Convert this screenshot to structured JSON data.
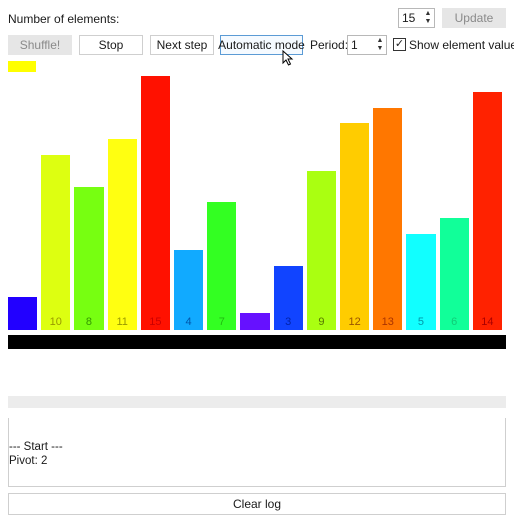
{
  "header": {
    "count_label": "Number of elements:",
    "count_value": "15",
    "update_label": "Update"
  },
  "controls": {
    "shuffle_label": "Shuffle!",
    "stop_label": "Stop",
    "next_step_label": "Next step",
    "automatic_mode_label": "Automatic mode",
    "period_label": "Period:",
    "period_value": "1",
    "show_value_label": "Show element value",
    "show_value_checked": true
  },
  "highlight_color": "#ffff00",
  "bars": [
    {
      "value": 1,
      "label": "",
      "color": "#2200ff",
      "label_color": "#2200ff"
    },
    {
      "value": 10,
      "label": "10",
      "color": "#ddff11",
      "label_color": "#999900"
    },
    {
      "value": 8,
      "label": "8",
      "color": "#77ff11",
      "label_color": "#339900"
    },
    {
      "value": 11,
      "label": "11",
      "color": "#ffff11",
      "label_color": "#999900"
    },
    {
      "value": 15,
      "label": "15",
      "color": "#ff1100",
      "label_color": "#cc0000"
    },
    {
      "value": 4,
      "label": "4",
      "color": "#11aaff",
      "label_color": "#0055aa"
    },
    {
      "value": 7,
      "label": "7",
      "color": "#33ff22",
      "label_color": "#22bb11"
    },
    {
      "value": 0,
      "label": "",
      "color": "#6611ff",
      "label_color": "#6611ff"
    },
    {
      "value": 3,
      "label": "3",
      "color": "#1144ff",
      "label_color": "#0022aa"
    },
    {
      "value": 9,
      "label": "9",
      "color": "#aaff11",
      "label_color": "#557700"
    },
    {
      "value": 12,
      "label": "12",
      "color": "#ffcc00",
      "label_color": "#995500"
    },
    {
      "value": 13,
      "label": "13",
      "color": "#ff7700",
      "label_color": "#aa3300"
    },
    {
      "value": 5,
      "label": "5",
      "color": "#11ffff",
      "label_color": "#0099aa"
    },
    {
      "value": 6,
      "label": "6",
      "color": "#11ff99",
      "label_color": "#11cc77"
    },
    {
      "value": 14,
      "label": "14",
      "color": "#ff2200",
      "label_color": "#aa0000"
    }
  ],
  "max_value": 15,
  "log": {
    "lines": [
      "--- Start ---",
      "Pivot: 2"
    ],
    "clear_label": "Clear log"
  }
}
